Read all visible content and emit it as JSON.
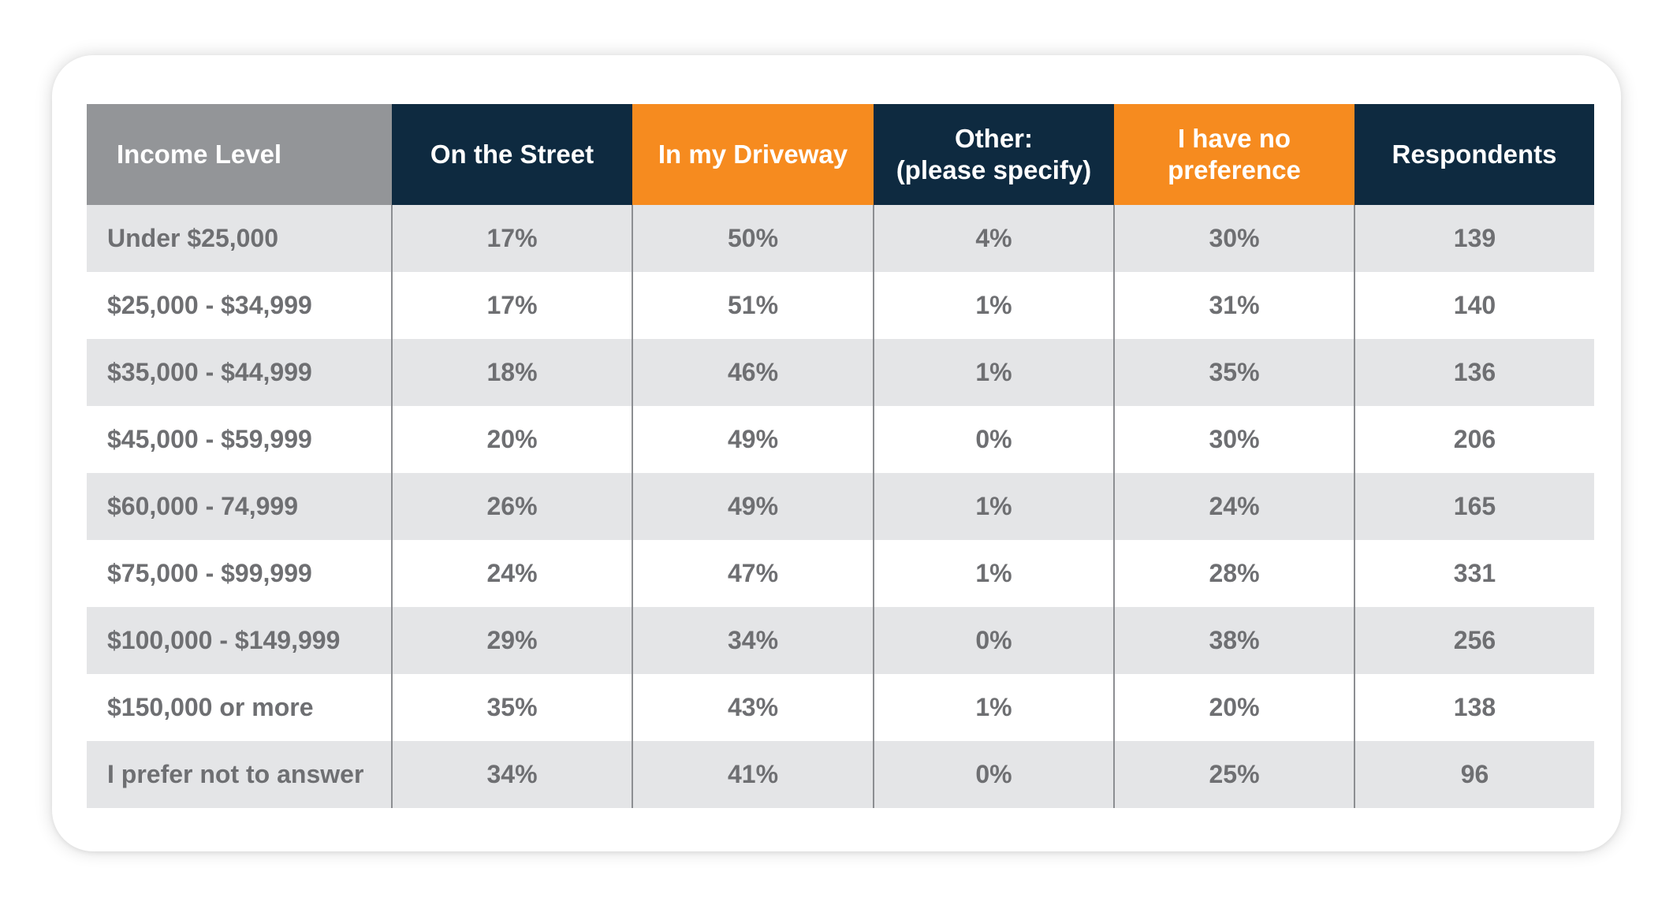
{
  "chart_data": {
    "type": "table",
    "columns": [
      {
        "label": "Income Level",
        "color": "#939598"
      },
      {
        "label": "On the Street",
        "color": "#0e2a40"
      },
      {
        "label": "In my Driveway",
        "color": "#f68b1f"
      },
      {
        "label": "Other:\n(please specify)",
        "color": "#0e2a40"
      },
      {
        "label": "I have no\npreference",
        "color": "#f68b1f"
      },
      {
        "label": "Respondents",
        "color": "#0e2a40"
      }
    ],
    "rows": [
      [
        "Under $25,000",
        "17%",
        "50%",
        "4%",
        "30%",
        "139"
      ],
      [
        "$25,000 - $34,999",
        "17%",
        "51%",
        "1%",
        "31%",
        "140"
      ],
      [
        "$35,000 - $44,999",
        "18%",
        "46%",
        "1%",
        "35%",
        "136"
      ],
      [
        "$45,000 - $59,999",
        "20%",
        "49%",
        "0%",
        "30%",
        "206"
      ],
      [
        "$60,000 - 74,999",
        "26%",
        "49%",
        "1%",
        "24%",
        "165"
      ],
      [
        "$75,000 - $99,999",
        "24%",
        "47%",
        "1%",
        "28%",
        "331"
      ],
      [
        "$100,000 - $149,999",
        "29%",
        "34%",
        "0%",
        "38%",
        "256"
      ],
      [
        "$150,000 or more",
        "35%",
        "43%",
        "1%",
        "20%",
        "138"
      ],
      [
        "I prefer not to answer",
        "34%",
        "41%",
        "0%",
        "25%",
        "96"
      ]
    ],
    "stripe_colors": [
      "#e4e5e7",
      "#ffffff"
    ],
    "text_color": "#6e6f72"
  }
}
